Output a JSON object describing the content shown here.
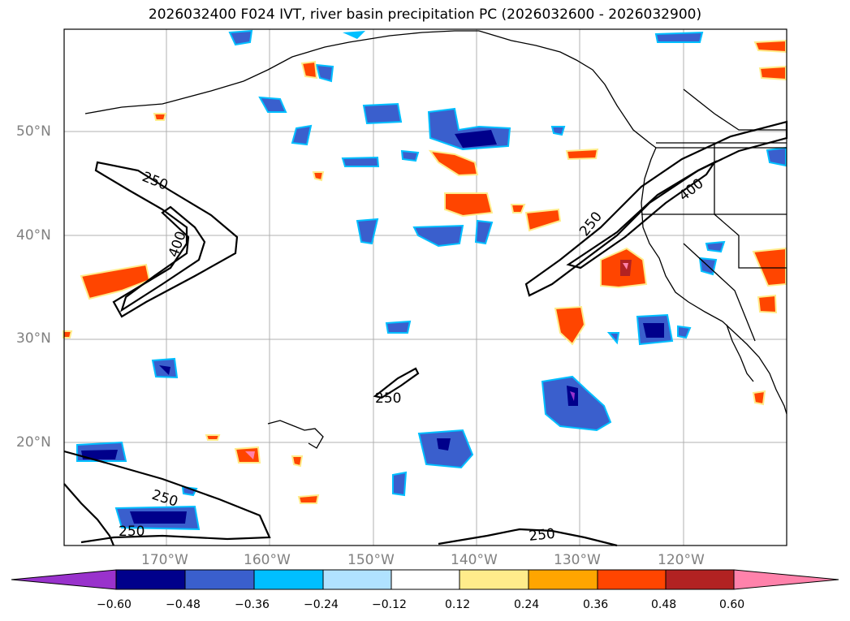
{
  "title": "2026032400 F024 IVT, river basin precipitation PC (2026032600 - 2026032900)",
  "lat_labels": [
    "50°N",
    "40°N",
    "30°N",
    "20°N"
  ],
  "lon_labels": [
    "170°W",
    "160°W",
    "150°W",
    "140°W",
    "130°W",
    "120°W"
  ],
  "contour_labels": [
    "250",
    "400",
    "250",
    "400",
    "250",
    "250",
    "250",
    "250"
  ],
  "colorbar": {
    "ticks": [
      "−0.60",
      "−0.48",
      "−0.36",
      "−0.24",
      "−0.12",
      "0.12",
      "0.24",
      "0.36",
      "0.48",
      "0.60"
    ],
    "colors": [
      "#9932CC",
      "#00008B",
      "#3A5FCD",
      "#00BFFF",
      "#B0E2FF",
      "#FFFFFF",
      "#FFEC8B",
      "#FFA500",
      "#FF4500",
      "#B22222",
      "#FF82AB"
    ]
  }
}
